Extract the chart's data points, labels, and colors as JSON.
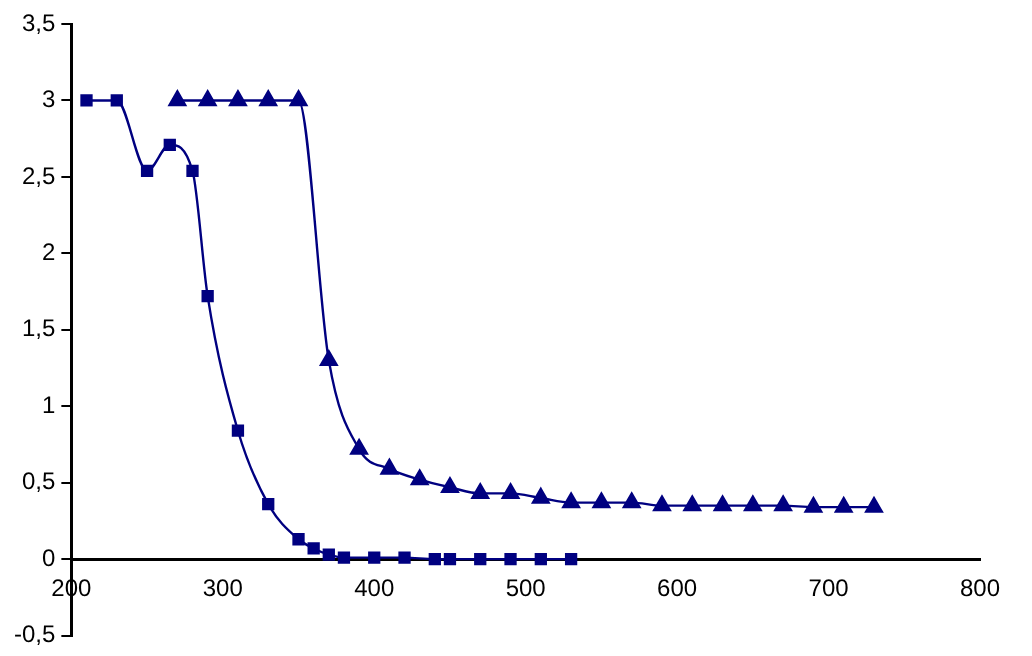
{
  "chart_data": {
    "type": "line",
    "series": [
      {
        "color": "#000080",
        "marker": "square",
        "x": [
          210,
          230,
          250,
          265,
          280,
          290,
          310,
          330,
          350,
          360,
          370,
          380,
          400,
          420,
          440,
          450,
          470,
          490,
          510,
          530
        ],
        "values": [
          3,
          3,
          2.54,
          2.71,
          2.54,
          1.72,
          0.84,
          0.36,
          0.13,
          0.07,
          0.03,
          0.01,
          0.01,
          0.01,
          0,
          0,
          0,
          0,
          0,
          0
        ]
      },
      {
        "color": "#000080",
        "marker": "triangle",
        "x": [
          270,
          290,
          310,
          330,
          350,
          370,
          390,
          410,
          430,
          450,
          470,
          490,
          510,
          530,
          550,
          570,
          590,
          610,
          630,
          650,
          670,
          690,
          710,
          730
        ],
        "values": [
          3,
          3,
          3,
          3,
          3,
          1.3,
          0.72,
          0.59,
          0.52,
          0.47,
          0.43,
          0.43,
          0.4,
          0.37,
          0.37,
          0.37,
          0.35,
          0.35,
          0.35,
          0.35,
          0.35,
          0.34,
          0.34,
          0.34
        ]
      }
    ],
    "xlim": [
      200,
      800
    ],
    "xticks": [
      200,
      300,
      400,
      500,
      600,
      700,
      800
    ],
    "ylim": [
      -0.5,
      3.5
    ],
    "yticks": [
      {
        "value": -0.5,
        "label": "-0,5"
      },
      0,
      {
        "value": 0.5,
        "label": "0,5"
      },
      1,
      {
        "value": 1.5,
        "label": "1,5"
      },
      2,
      {
        "value": 2.5,
        "label": "2,5"
      },
      3,
      {
        "value": 3.5,
        "label": "3,5"
      }
    ],
    "grid": false,
    "legend": false
  }
}
